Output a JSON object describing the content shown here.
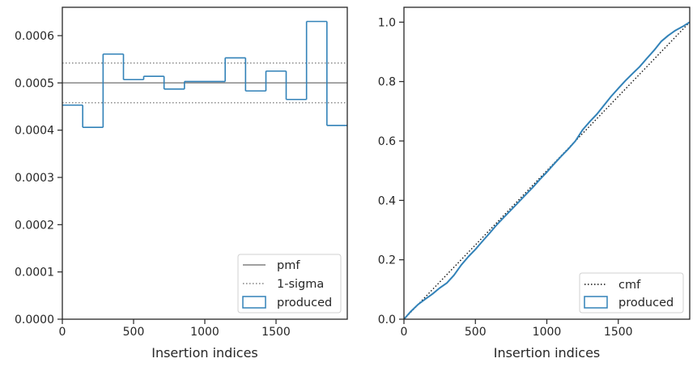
{
  "chart_data": [
    {
      "type": "histogram",
      "xlabel": "Insertion indices",
      "ylabel": "",
      "xlim": [
        0,
        2000
      ],
      "ylim": [
        0,
        0.00066
      ],
      "xticks": [
        0,
        500,
        1000,
        1500
      ],
      "xtick_labels": [
        "0",
        "500",
        "1000",
        "1500"
      ],
      "yticks": [
        0,
        0.0001,
        0.0002,
        0.0003,
        0.0004,
        0.0005,
        0.0006
      ],
      "ytick_labels": [
        "0.0000",
        "0.0001",
        "0.0002",
        "0.0003",
        "0.0004",
        "0.0005",
        "0.0006"
      ],
      "bin_edges": [
        0,
        143,
        286,
        429,
        571,
        714,
        857,
        1000,
        1143,
        1286,
        1429,
        1571,
        1714,
        1857,
        2000
      ],
      "series": [
        {
          "name": "produced",
          "style": "step",
          "color": "#3282b8",
          "values": [
            0.000453,
            0.000406,
            0.000561,
            0.000507,
            0.000514,
            0.000487,
            0.000503,
            0.000503,
            0.000553,
            0.000483,
            0.000525,
            0.000465,
            0.00063,
            0.00041
          ]
        }
      ],
      "lines": [
        {
          "name": "pmf",
          "style": "solid",
          "color": "#808080",
          "y": 0.0005
        },
        {
          "name": "1-sigma",
          "style": "dotted",
          "color": "#808080",
          "y": 0.000542
        },
        {
          "name": "1-sigma",
          "style": "dotted",
          "color": "#808080",
          "y": 0.000458
        }
      ],
      "legend": {
        "placement": "lower-right",
        "entries": [
          "pmf",
          "1-sigma",
          "produced"
        ]
      }
    },
    {
      "type": "line",
      "xlabel": "Insertion indices",
      "ylabel": "",
      "xlim": [
        0,
        2000
      ],
      "ylim": [
        0,
        1.05
      ],
      "xticks": [
        0,
        500,
        1000,
        1500
      ],
      "xtick_labels": [
        "0",
        "500",
        "1000",
        "1500"
      ],
      "yticks": [
        0,
        0.2,
        0.4,
        0.6,
        0.8,
        1.0
      ],
      "ytick_labels": [
        "0.0",
        "0.2",
        "0.4",
        "0.6",
        "0.8",
        "1.0"
      ],
      "series": [
        {
          "name": "cmf",
          "style": "dotted",
          "color": "#111111",
          "x": [
            0,
            2000
          ],
          "y": [
            0,
            1.0
          ]
        },
        {
          "name": "produced",
          "style": "solid",
          "color": "#3282b8",
          "x": [
            0,
            50,
            100,
            150,
            200,
            250,
            300,
            350,
            400,
            450,
            500,
            550,
            600,
            650,
            700,
            750,
            800,
            850,
            900,
            950,
            1000,
            1050,
            1100,
            1150,
            1200,
            1250,
            1300,
            1350,
            1400,
            1450,
            1500,
            1550,
            1600,
            1650,
            1700,
            1750,
            1800,
            1850,
            1900,
            1950,
            2000
          ],
          "y": [
            0,
            0.027,
            0.05,
            0.068,
            0.085,
            0.105,
            0.122,
            0.148,
            0.182,
            0.21,
            0.235,
            0.263,
            0.29,
            0.318,
            0.343,
            0.368,
            0.393,
            0.418,
            0.443,
            0.47,
            0.495,
            0.522,
            0.548,
            0.573,
            0.6,
            0.637,
            0.665,
            0.69,
            0.72,
            0.75,
            0.777,
            0.803,
            0.827,
            0.85,
            0.878,
            0.905,
            0.935,
            0.955,
            0.972,
            0.985,
            1.0
          ]
        }
      ],
      "legend": {
        "placement": "lower-right",
        "entries": [
          "cmf",
          "produced"
        ]
      }
    }
  ]
}
